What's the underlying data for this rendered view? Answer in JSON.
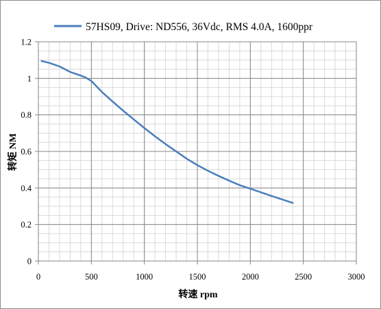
{
  "chart_data": {
    "type": "line",
    "title": "",
    "xlabel": "转速 rpm",
    "ylabel": "转矩 NM",
    "xlim": [
      0,
      3000
    ],
    "ylim": [
      0,
      1.2
    ],
    "x_major_ticks": [
      0,
      500,
      1000,
      1500,
      2000,
      2500,
      3000
    ],
    "x_tick_labels": [
      "0",
      "500",
      "1000",
      "1500",
      "2000",
      "2500",
      "3000"
    ],
    "y_major_ticks": [
      0,
      0.2,
      0.4,
      0.6,
      0.8,
      1.0,
      1.2
    ],
    "y_tick_labels": [
      "0",
      "0.2",
      "0.4",
      "0.6",
      "0.8",
      "1",
      "1.2"
    ],
    "x_minor_step": 100,
    "y_minor_step": 0.05,
    "grid": true,
    "legend_position": "top",
    "series": [
      {
        "name": "57HS09, Drive: ND556, 36Vdc, RMS 4.0A, 1600ppr",
        "color": "#4a7ebb",
        "x": [
          30,
          100,
          150,
          200,
          250,
          300,
          350,
          400,
          450,
          500,
          550,
          600,
          700,
          800,
          900,
          1000,
          1100,
          1200,
          1300,
          1400,
          1500,
          1600,
          1700,
          1800,
          1900,
          2000,
          2100,
          2200,
          2300,
          2400
        ],
        "y": [
          1.095,
          1.085,
          1.075,
          1.065,
          1.05,
          1.035,
          1.025,
          1.015,
          1.003,
          0.985,
          0.955,
          0.925,
          0.873,
          0.823,
          0.775,
          0.728,
          0.683,
          0.64,
          0.6,
          0.56,
          0.525,
          0.494,
          0.466,
          0.44,
          0.415,
          0.396,
          0.376,
          0.356,
          0.337,
          0.318
        ]
      }
    ]
  }
}
